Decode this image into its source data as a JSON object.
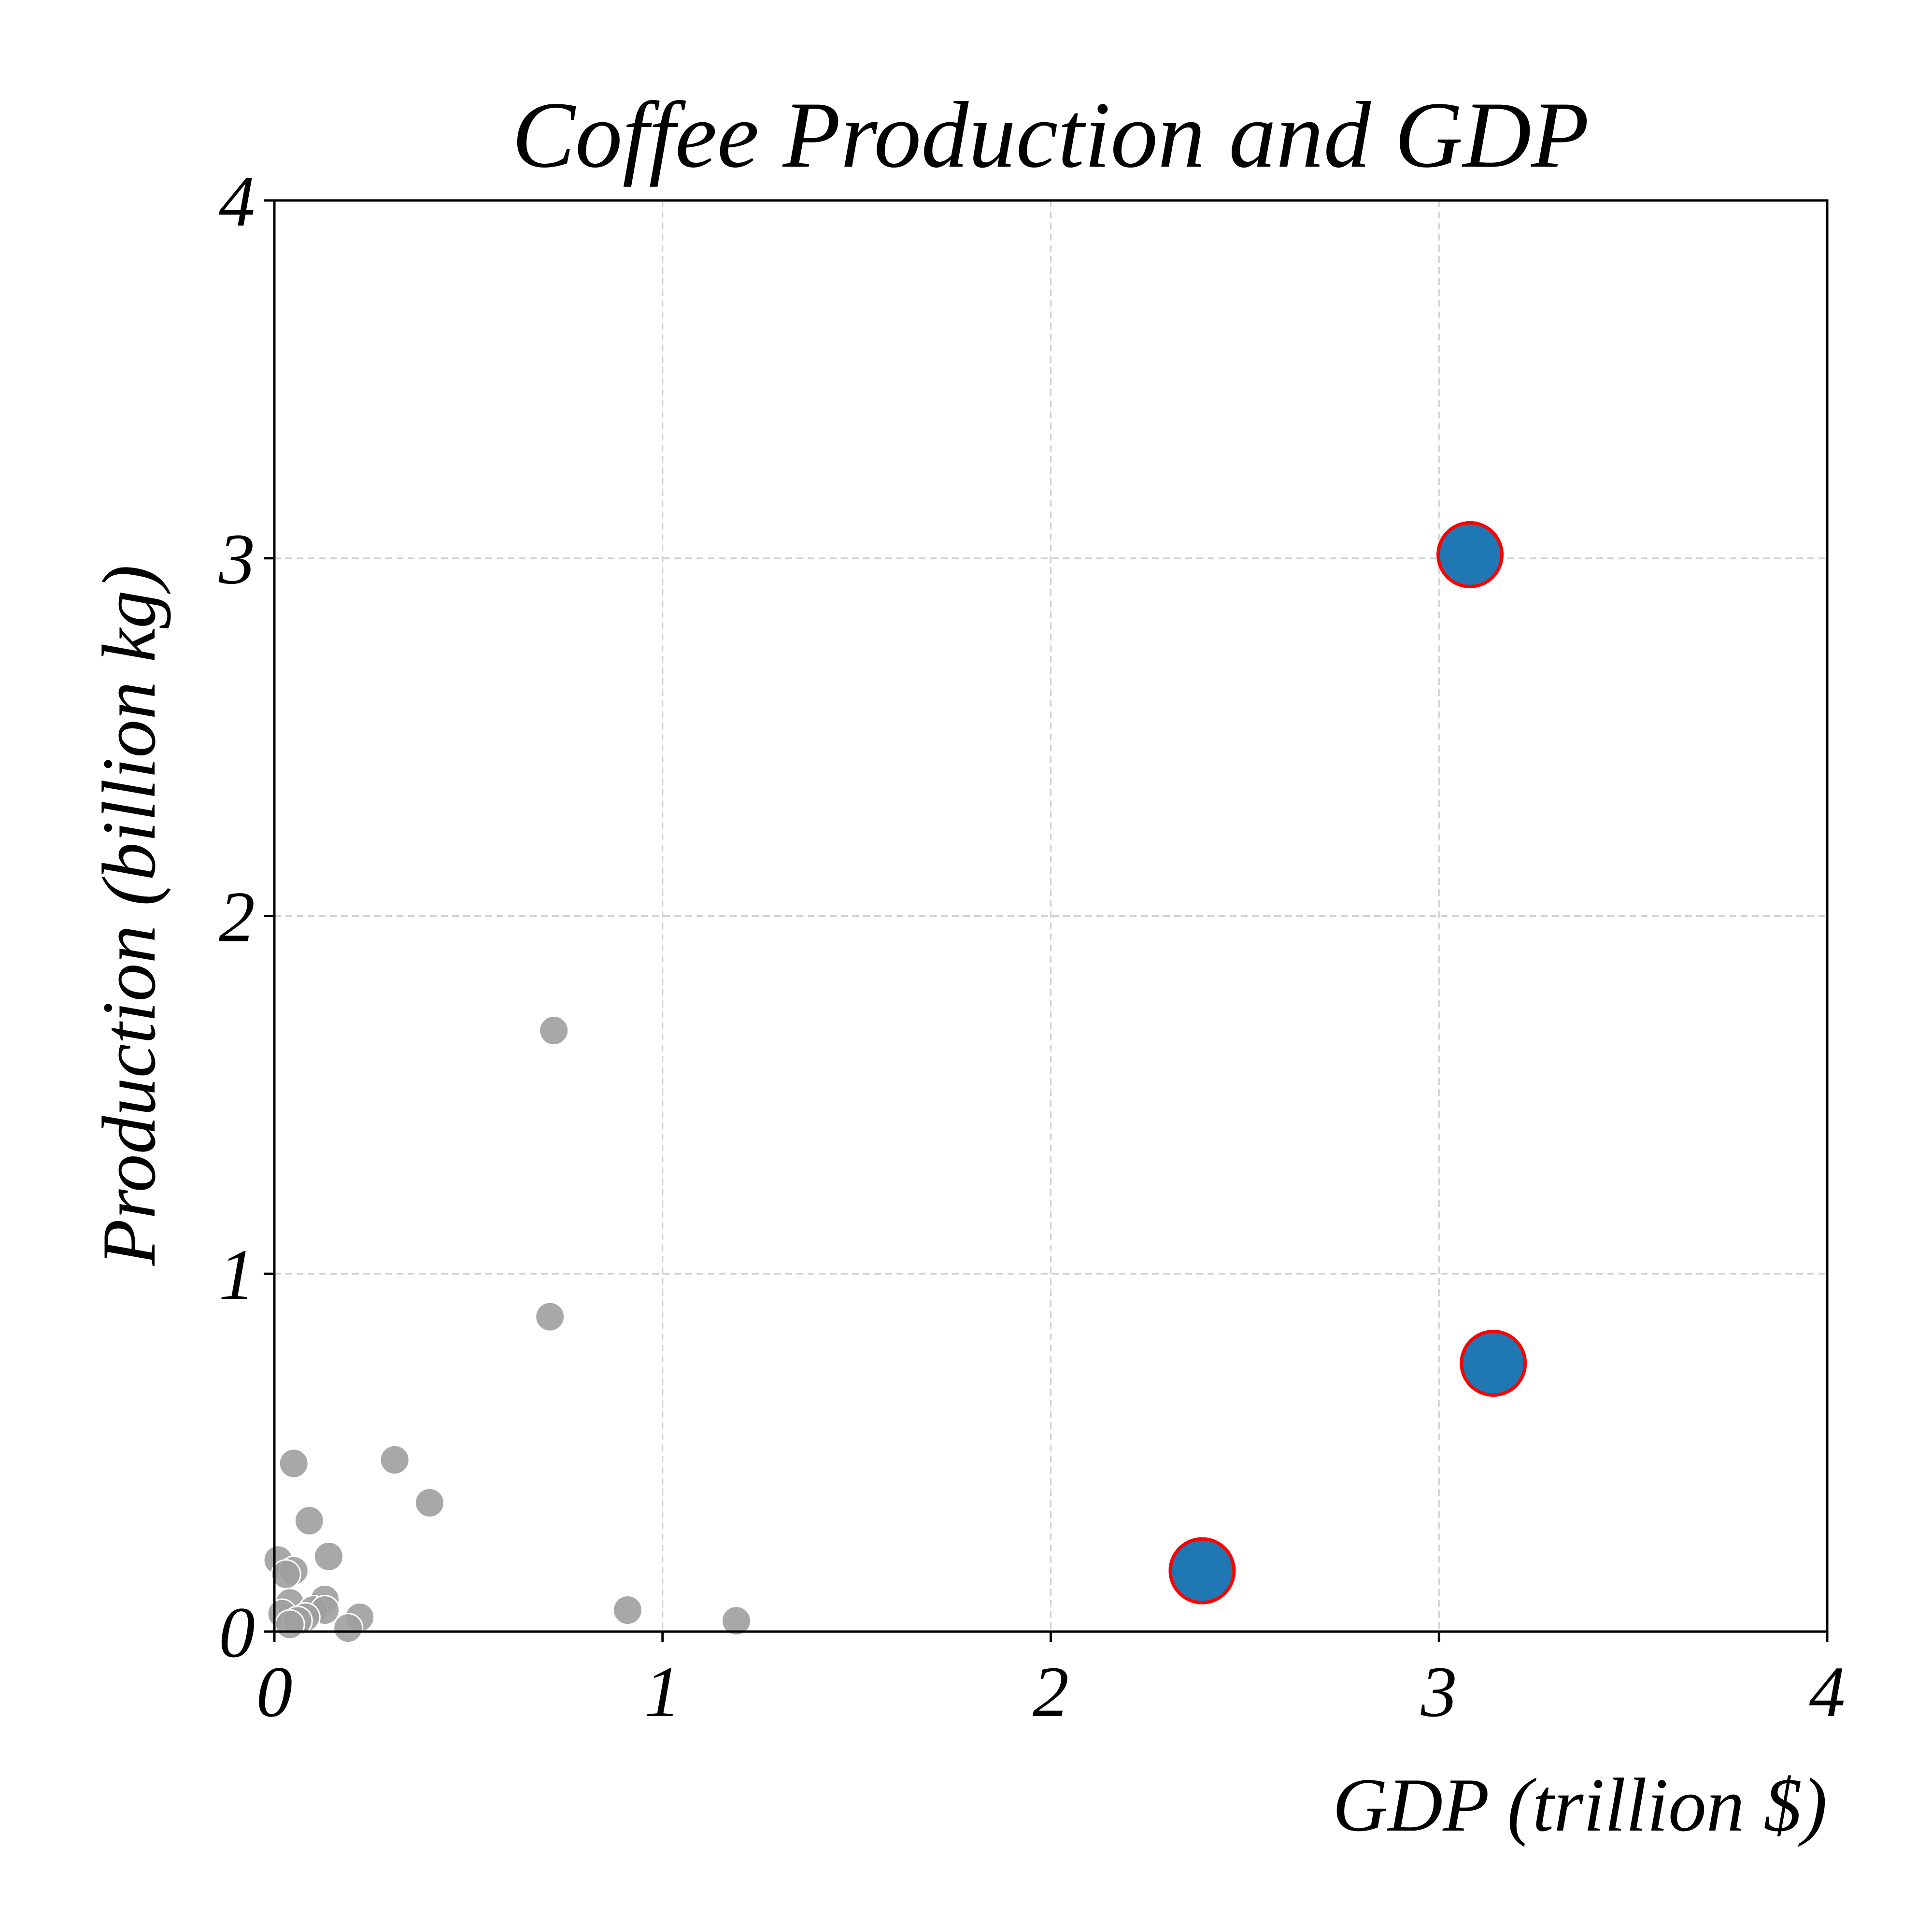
{
  "chart_data": {
    "type": "scatter",
    "title": "Coffee Production and GDP",
    "xlabel": "GDP (trillion $)",
    "ylabel": "Production (billion kg)",
    "xlim": [
      0,
      4
    ],
    "ylim": [
      0,
      4
    ],
    "xticks": [
      "0",
      "1",
      "2",
      "3",
      "4"
    ],
    "yticks": [
      "0",
      "1",
      "2",
      "3",
      "4"
    ],
    "grid": true,
    "legend": "none",
    "colors": {
      "highlight_fill": "#1f77b4",
      "highlight_edge": "#ff0000",
      "other_fill": "#9e9e9e",
      "other_edge": "#ffffff"
    },
    "series": [
      {
        "points": [
          {
            "x": 0.72,
            "y": 1.68
          },
          {
            "x": 0.71,
            "y": 0.88
          },
          {
            "x": 0.31,
            "y": 0.48
          },
          {
            "x": 0.4,
            "y": 0.36
          },
          {
            "x": 0.05,
            "y": 0.47
          },
          {
            "x": 0.09,
            "y": 0.31
          },
          {
            "x": 0.14,
            "y": 0.21
          },
          {
            "x": 0.01,
            "y": 0.2
          },
          {
            "x": 0.05,
            "y": 0.17
          },
          {
            "x": 0.03,
            "y": 0.16
          },
          {
            "x": 0.13,
            "y": 0.09
          },
          {
            "x": 0.04,
            "y": 0.08
          },
          {
            "x": 0.1,
            "y": 0.06
          },
          {
            "x": 0.13,
            "y": 0.06
          },
          {
            "x": 0.02,
            "y": 0.05
          },
          {
            "x": 0.08,
            "y": 0.04
          },
          {
            "x": 0.22,
            "y": 0.04
          },
          {
            "x": 0.06,
            "y": 0.03
          },
          {
            "x": 0.04,
            "y": 0.02
          },
          {
            "x": 0.19,
            "y": 0.01
          },
          {
            "x": 0.91,
            "y": 0.06
          },
          {
            "x": 1.19,
            "y": 0.03
          }
        ]
      },
      {
        "points": [
          {
            "x": 3.08,
            "y": 3.01
          },
          {
            "x": 3.14,
            "y": 0.75
          },
          {
            "x": 2.39,
            "y": 0.17
          }
        ]
      }
    ]
  }
}
